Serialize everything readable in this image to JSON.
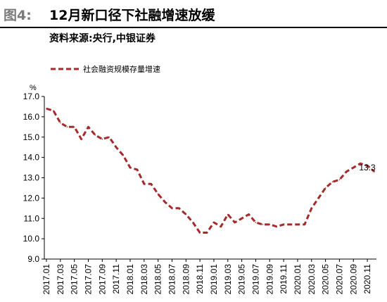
{
  "header": {
    "figure_label": "图4:",
    "title": "12月新口径下社融增速放缓",
    "source": "资料来源:央行,中银证券"
  },
  "colors": {
    "series": "#a52a2a",
    "axis": "#000000"
  },
  "chart_data": {
    "type": "line",
    "title": "",
    "xlabel": "",
    "ylabel": "%",
    "ylim": [
      9.0,
      17.0
    ],
    "yticks": [
      "17.0",
      "16.0",
      "15.0",
      "14.0",
      "13.0",
      "12.0",
      "11.0",
      "10.0",
      "9.0"
    ],
    "grid": false,
    "legend": "top-left",
    "x_tick_labels": [
      "2017.01",
      "2017.03",
      "2017.05",
      "2017.07",
      "2017.09",
      "2017.11",
      "2018.01",
      "2018.03",
      "2018.05",
      "2018.07",
      "2018.09",
      "2018.11",
      "2019.01",
      "2019.03",
      "2019.05",
      "2019.07",
      "2019.09",
      "2019.11",
      "2020.01",
      "2020.03",
      "2020.05",
      "2020.07",
      "2020.09",
      "2020.11"
    ],
    "x": [
      "2017.01",
      "2017.02",
      "2017.03",
      "2017.04",
      "2017.05",
      "2017.06",
      "2017.07",
      "2017.08",
      "2017.09",
      "2017.10",
      "2017.11",
      "2017.12",
      "2018.01",
      "2018.02",
      "2018.03",
      "2018.04",
      "2018.05",
      "2018.06",
      "2018.07",
      "2018.08",
      "2018.09",
      "2018.10",
      "2018.11",
      "2018.12",
      "2019.01",
      "2019.02",
      "2019.03",
      "2019.04",
      "2019.05",
      "2019.06",
      "2019.07",
      "2019.08",
      "2019.09",
      "2019.10",
      "2019.11",
      "2019.12",
      "2020.01",
      "2020.02",
      "2020.03",
      "2020.04",
      "2020.05",
      "2020.06",
      "2020.07",
      "2020.08",
      "2020.09",
      "2020.10",
      "2020.11",
      "2020.12"
    ],
    "series": [
      {
        "name": "社会融资规模存量增速",
        "values": [
          16.4,
          16.3,
          15.7,
          15.5,
          15.5,
          14.9,
          15.5,
          15.1,
          14.9,
          15.0,
          14.5,
          14.1,
          13.5,
          13.4,
          12.7,
          12.7,
          12.2,
          11.8,
          11.5,
          11.5,
          11.2,
          10.8,
          10.3,
          10.3,
          10.8,
          10.6,
          11.2,
          10.8,
          11.0,
          11.2,
          10.8,
          10.7,
          10.7,
          10.6,
          10.7,
          10.7,
          10.7,
          10.7,
          11.5,
          12.0,
          12.5,
          12.8,
          12.9,
          13.3,
          13.5,
          13.7,
          13.6,
          13.3
        ]
      }
    ],
    "annotations": [
      {
        "x": "2020.12",
        "y": 13.3,
        "text": "13.3"
      }
    ]
  }
}
